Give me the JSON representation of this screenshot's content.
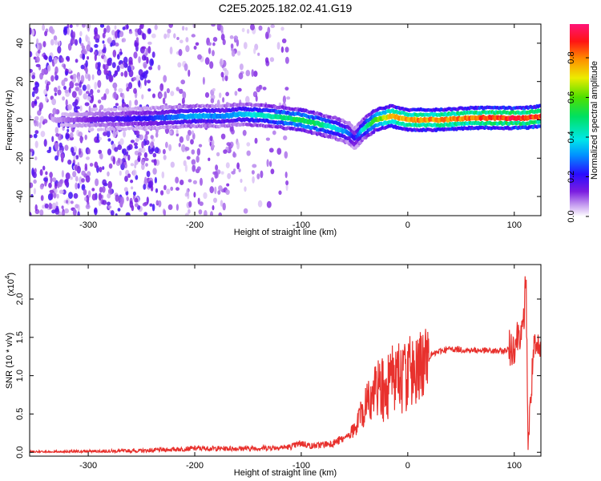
{
  "title": "C2E5.2025.182.02.41.G19",
  "chart_data": [
    {
      "type": "heatmap",
      "xlabel": "Height of straight line (km)",
      "ylabel": "Frequency (Hz)",
      "xlim": [
        -355,
        125
      ],
      "ylim": [
        -50,
        50
      ],
      "xticks": [
        -300,
        -200,
        -100,
        0,
        100
      ],
      "yticks": [
        -40,
        -20,
        0,
        20,
        40
      ],
      "colorbar": {
        "label": "Normalized spectral amplitude",
        "range": [
          0,
          0.97
        ],
        "ticks": [
          0.0,
          0.2,
          0.4,
          0.6,
          0.8
        ],
        "colormap": "rainbow (white-purple-blue-cyan-green-yellow-red-magenta)"
      },
      "ridge": [
        {
          "x": -355,
          "y": 0,
          "amp": 0.0
        },
        {
          "x": -305,
          "y": 0,
          "amp": 0.12
        },
        {
          "x": -235,
          "y": 1,
          "amp": 0.25
        },
        {
          "x": -200,
          "y": 2,
          "amp": 0.35
        },
        {
          "x": -175,
          "y": 2,
          "amp": 0.3
        },
        {
          "x": -155,
          "y": 3,
          "amp": 0.35
        },
        {
          "x": -130,
          "y": 2,
          "amp": 0.45
        },
        {
          "x": -100,
          "y": 0,
          "amp": 0.55
        },
        {
          "x": -85,
          "y": -2,
          "amp": 0.5
        },
        {
          "x": -70,
          "y": -4,
          "amp": 0.4
        },
        {
          "x": -55,
          "y": -7,
          "amp": 0.3
        },
        {
          "x": -50,
          "y": -10,
          "amp": 0.2
        },
        {
          "x": -42,
          "y": -5,
          "amp": 0.4
        },
        {
          "x": -30,
          "y": 0,
          "amp": 0.6
        },
        {
          "x": -15,
          "y": 2,
          "amp": 0.75
        },
        {
          "x": 0,
          "y": 0,
          "amp": 0.8
        },
        {
          "x": 30,
          "y": 0,
          "amp": 0.82
        },
        {
          "x": 60,
          "y": 1,
          "amp": 0.85
        },
        {
          "x": 90,
          "y": 1,
          "amp": 0.9
        },
        {
          "x": 110,
          "y": 1,
          "amp": 0.92
        },
        {
          "x": 125,
          "y": 2,
          "amp": 0.88
        }
      ]
    },
    {
      "type": "line",
      "xlabel": "Height of straight line (km)",
      "ylabel": "SNR (10 * v/v)",
      "y_multiplier": "(x10",
      "y_multiplier_exp": "4",
      "xlim": [
        -355,
        125
      ],
      "ylim": [
        -0.05,
        2.45
      ],
      "xticks": [
        -300,
        -200,
        -100,
        0,
        100
      ],
      "yticks": [
        "0.0",
        "0.5",
        "1.0",
        "1.5",
        "2.0"
      ],
      "color": "#e8312d",
      "series": [
        {
          "x": [
            -355,
            -300,
            -250,
            -200,
            -150,
            -110,
            -100,
            -90,
            -80,
            -70,
            -60,
            -50,
            -40,
            -30,
            -20,
            -10,
            0,
            10,
            20,
            30,
            40,
            50,
            60,
            70,
            80,
            90,
            95,
            100,
            105,
            108,
            111,
            113,
            118,
            125
          ],
          "values": [
            0.0,
            0.01,
            0.02,
            0.05,
            0.05,
            0.07,
            0.12,
            0.08,
            0.1,
            0.12,
            0.18,
            0.3,
            0.6,
            0.85,
            0.85,
            0.95,
            1.0,
            1.15,
            1.25,
            1.32,
            1.35,
            1.34,
            1.33,
            1.33,
            1.32,
            1.32,
            1.35,
            1.4,
            1.6,
            1.5,
            2.3,
            0.1,
            1.3,
            1.32
          ]
        }
      ]
    }
  ]
}
